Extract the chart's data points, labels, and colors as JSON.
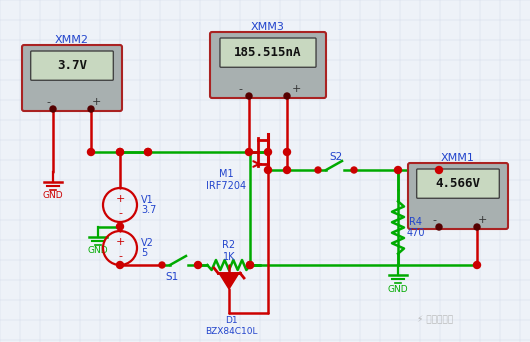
{
  "bg_color": "#eef2f8",
  "grid_color": "#d0d8e8",
  "line_green": "#00aa00",
  "line_red": "#cc0000",
  "line_blue": "#2244cc",
  "meter_border": "#aa2222",
  "meter_body": "#a8b0b0",
  "meter_screen": "#c8d8c0",
  "dot_red": "#cc0000",
  "text_blue": "#2244cc",
  "text_dark": "#111111",
  "watermark": "电路一点通",
  "xmm2_label": "XMM2",
  "xmm2_val": "3.7V",
  "xmm3_label": "XMM3",
  "xmm3_val": "185.515nA",
  "xmm1_label": "XMM1",
  "xmm1_val": "4.566V",
  "mosfet_label": "M1\nIRF7204",
  "r2_label": "R2\n1K",
  "r4_label": "R4\n470",
  "d1_label": "D1\nBZX84C10L",
  "v1_label": "V1",
  "v1_val": "3.7",
  "v2_label": "V2",
  "v2_val": "5",
  "s1_label": "S1",
  "s2_label": "S2",
  "gnd_label": "GND"
}
